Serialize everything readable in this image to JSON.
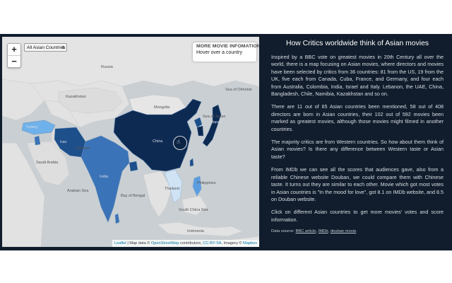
{
  "map": {
    "zoom_in": "+",
    "zoom_out": "−",
    "filter": {
      "selected": "All Asian Countries"
    },
    "info": {
      "title": "MORE MOVIE INFOMATION",
      "hint": "Hover over a country"
    },
    "labels": {
      "mongolia": "Mongolia",
      "china": "China",
      "japan": "Japan",
      "sea_of_japan": "Sea of Japan",
      "sea_of_okhotsk": "Sea of Okhotsk",
      "thailand": "Thailand",
      "india": "India",
      "pakistan": "Pakistan",
      "turkey": "Turkey",
      "saudi_arabia": "Saudi Arabia",
      "iran": "Iran",
      "kazakhstan": "Kazakhstan",
      "russia": "Russia",
      "philippines": "Philippines",
      "indonesia": "Indonesia",
      "bay_of_bengal": "Bay of Bengal",
      "arabian_sea": "Arabian Sea",
      "south_china_sea": "South China Sea"
    },
    "attribution": {
      "leaflet": "Leaflet",
      "sep1": " | Map data © ",
      "osm": "OpenStreetMap",
      "contrib": " contributors, ",
      "license": "CC-BY-SA",
      "imagery": ", Imagery © ",
      "mapbox": "Mapbox"
    },
    "colors": {
      "water": "#c9cfd3",
      "land": "#e4e4e4",
      "darkest": "#0d2a52",
      "dark": "#1d4f8a",
      "mid": "#3a73b8",
      "light": "#5b9ee0",
      "lighter": "#6fb1ea",
      "pale": "#cfe3f5"
    }
  },
  "panel": {
    "title": "How Critics worldwide think of Asian movies",
    "paragraphs": [
      "Inspired by a BBC vote on greatest movies in 20th Century all over the world, there is a map focusing on Asian movies, where directors and movies have been selected by critics from 36 countries: 81 from the US, 19 from the UK, five each from Canada, Cuba, France, and Germany, and four each from Australia, Colombia, India, Israel and Italy. Lebanon, the UAE, China, Bangladesh, Chile, Namibia, Kazakhstan and so on.",
      "There are 11 out of 65 Asian countries been mentioned, 58 out of 408 directors are born in Asian countries, their 102 out of 592 movies been marked as greatest movies, although those movies might filmed in another countries.",
      "The majority critics are from Western countries. So how about them think of Asian movies? Is there any difference between Western taste or Asian taste?",
      "From IMDb we can see all the scores that audiences gave, also from a reliable Chinese website Douban, we could compare them with Chinese taste. It turns out they are similar to each other. Movie which got most votes in Asian countries is \"In the mood for love\", got 8.1 on IMDb website, and 8.5 on Douban website.",
      "Click on different Asian countries to get more movies' votes and score information."
    ],
    "source": {
      "prefix": "Data source: ",
      "link1": "BBC article",
      "sep1": ", ",
      "link2": "IMDb",
      "sep2": ", ",
      "link3": "douban movie",
      "suffix": "."
    }
  }
}
